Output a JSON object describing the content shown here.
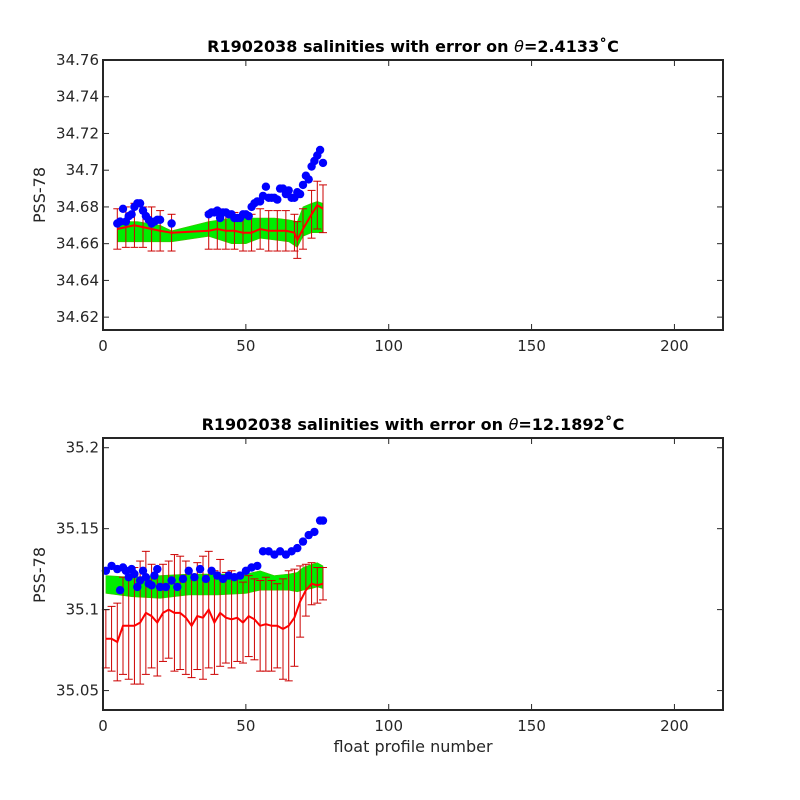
{
  "colors": {
    "observed": "#0000ff",
    "mapped": "#ff0000",
    "errorbar": "#cc0000",
    "band": "#00ee00",
    "band_edge": "#44bb00",
    "axis": "#262626"
  },
  "chart_data": [
    {
      "type": "scatter",
      "title": "R1902038 salinities with error on θ=2.4133˚C",
      "title_parts": {
        "prefix": "R1902038 salinities with error on ",
        "symbol": "θ",
        "suffix": "=2.4133˚C"
      },
      "xlabel": "",
      "ylabel": "PSS-78",
      "xlim": [
        0,
        217
      ],
      "ylim": [
        34.613,
        34.76
      ],
      "xticks": [
        0,
        50,
        100,
        150,
        200
      ],
      "yticks": [
        34.62,
        34.64,
        34.66,
        34.68,
        34.7,
        34.72,
        34.74,
        34.76
      ],
      "ytick_labels": [
        "34.62",
        "34.64",
        "34.66",
        "34.68",
        "34.7",
        "34.72",
        "34.74",
        "34.76"
      ],
      "grid": false,
      "legend": "none",
      "series": [
        {
          "role": "observed",
          "x": [
            5,
            6,
            7,
            8,
            9,
            10,
            11,
            12,
            13,
            14,
            15,
            16,
            17,
            18,
            19,
            20,
            24,
            37,
            38,
            39,
            40,
            41,
            42,
            43,
            44,
            45,
            46,
            47,
            48,
            49,
            50,
            51,
            52,
            53,
            54,
            55,
            56,
            57,
            58,
            59,
            60,
            61,
            62,
            63,
            64,
            65,
            66,
            67,
            68,
            69,
            70,
            71,
            72,
            73,
            74,
            75,
            76,
            77
          ],
          "y": [
            34.671,
            34.672,
            34.679,
            34.672,
            34.675,
            34.676,
            34.68,
            34.682,
            34.682,
            34.678,
            34.675,
            34.673,
            34.671,
            34.672,
            34.673,
            34.673,
            34.671,
            34.676,
            34.677,
            34.677,
            34.678,
            34.674,
            34.677,
            34.677,
            34.676,
            34.676,
            34.674,
            34.674,
            34.674,
            34.676,
            34.676,
            34.675,
            34.68,
            34.682,
            34.683,
            34.683,
            34.686,
            34.691,
            34.685,
            34.685,
            34.685,
            34.684,
            34.69,
            34.69,
            34.687,
            34.689,
            34.685,
            34.685,
            34.688,
            34.687,
            34.692,
            34.697,
            34.695,
            34.702,
            34.705,
            34.708,
            34.711,
            34.704
          ]
        },
        {
          "role": "mapped",
          "x": [
            5,
            8,
            11,
            14,
            17,
            20,
            24,
            37,
            40,
            43,
            46,
            49,
            52,
            55,
            58,
            61,
            64,
            67,
            68,
            70,
            73,
            75,
            77
          ],
          "y": [
            34.668,
            34.669,
            34.67,
            34.669,
            34.668,
            34.667,
            34.666,
            34.667,
            34.668,
            34.667,
            34.667,
            34.666,
            34.666,
            34.668,
            34.667,
            34.667,
            34.667,
            34.666,
            34.662,
            34.668,
            34.676,
            34.681,
            34.679
          ],
          "err": [
            0.011,
            0.011,
            0.012,
            0.011,
            0.012,
            0.011,
            0.01,
            0.01,
            0.011,
            0.01,
            0.01,
            0.01,
            0.01,
            0.011,
            0.011,
            0.011,
            0.011,
            0.01,
            0.01,
            0.011,
            0.013,
            0.013,
            0.013
          ]
        },
        {
          "role": "band",
          "x": [
            5,
            12,
            20,
            24,
            37,
            45,
            50,
            55,
            60,
            65,
            68,
            70,
            73,
            75,
            77
          ],
          "lower": [
            34.661,
            34.661,
            34.661,
            34.661,
            34.664,
            34.66,
            34.66,
            34.663,
            34.662,
            34.661,
            34.658,
            34.664,
            34.666,
            34.666,
            34.666
          ],
          "upper": [
            34.672,
            34.672,
            34.67,
            34.667,
            34.672,
            34.674,
            34.674,
            34.674,
            34.674,
            34.673,
            34.672,
            34.68,
            34.682,
            34.683,
            34.682
          ]
        }
      ]
    },
    {
      "type": "scatter",
      "title": "R1902038 salinities with error on θ=12.1892˚C",
      "title_parts": {
        "prefix": "R1902038 salinities with error on ",
        "symbol": "θ",
        "suffix": "=12.1892˚C"
      },
      "xlabel": "float profile number",
      "ylabel": "PSS-78",
      "xlim": [
        0,
        217
      ],
      "ylim": [
        35.038,
        35.206
      ],
      "xticks": [
        0,
        50,
        100,
        150,
        200
      ],
      "yticks": [
        35.05,
        35.1,
        35.15,
        35.2
      ],
      "ytick_labels": [
        "35.05",
        "35.1",
        "35.15",
        "35.2"
      ],
      "grid": false,
      "legend": "none",
      "series": [
        {
          "role": "observed",
          "x": [
            1,
            3,
            5,
            6,
            7,
            8,
            9,
            10,
            11,
            12,
            13,
            14,
            15,
            16,
            17,
            18,
            19,
            20,
            22,
            24,
            26,
            28,
            30,
            32,
            34,
            36,
            38,
            40,
            42,
            44,
            46,
            48,
            50,
            52,
            54,
            56,
            58,
            60,
            62,
            64,
            66,
            68,
            70,
            72,
            74,
            76,
            77
          ],
          "y": [
            35.124,
            35.127,
            35.125,
            35.112,
            35.126,
            35.124,
            35.12,
            35.125,
            35.122,
            35.114,
            35.118,
            35.124,
            35.12,
            35.116,
            35.115,
            35.121,
            35.125,
            35.114,
            35.114,
            35.118,
            35.114,
            35.119,
            35.124,
            35.12,
            35.125,
            35.119,
            35.124,
            35.121,
            35.119,
            35.121,
            35.12,
            35.121,
            35.124,
            35.126,
            35.127,
            35.136,
            35.136,
            35.134,
            35.136,
            35.134,
            35.136,
            35.138,
            35.142,
            35.146,
            35.148,
            35.155,
            35.155
          ]
        },
        {
          "role": "mapped",
          "x": [
            1,
            3,
            5,
            7,
            9,
            11,
            13,
            15,
            17,
            19,
            21,
            23,
            25,
            27,
            29,
            31,
            33,
            35,
            37,
            39,
            41,
            43,
            45,
            47,
            49,
            51,
            53,
            55,
            57,
            59,
            61,
            63,
            65,
            67,
            69,
            71,
            73,
            75,
            77
          ],
          "y": [
            35.082,
            35.082,
            35.08,
            35.09,
            35.09,
            35.09,
            35.092,
            35.098,
            35.096,
            35.092,
            35.098,
            35.1,
            35.098,
            35.098,
            35.095,
            35.09,
            35.096,
            35.095,
            35.1,
            35.092,
            35.098,
            35.095,
            35.094,
            35.095,
            35.092,
            35.096,
            35.094,
            35.09,
            35.091,
            35.09,
            35.09,
            35.088,
            35.09,
            35.095,
            35.105,
            35.112,
            35.116,
            35.115,
            35.116
          ],
          "err": [
            0.018,
            0.02,
            0.024,
            0.03,
            0.033,
            0.036,
            0.038,
            0.038,
            0.032,
            0.033,
            0.03,
            0.03,
            0.036,
            0.035,
            0.035,
            0.032,
            0.033,
            0.038,
            0.036,
            0.032,
            0.033,
            0.028,
            0.03,
            0.027,
            0.025,
            0.025,
            0.025,
            0.028,
            0.029,
            0.028,
            0.026,
            0.031,
            0.034,
            0.03,
            0.022,
            0.016,
            0.013,
            0.011,
            0.01
          ]
        },
        {
          "role": "band",
          "x": [
            1,
            10,
            20,
            30,
            40,
            50,
            55,
            60,
            65,
            68,
            70,
            73,
            75,
            77
          ],
          "lower": [
            35.11,
            35.108,
            35.107,
            35.109,
            35.109,
            35.11,
            35.112,
            35.112,
            35.112,
            35.111,
            35.112,
            35.113,
            35.114,
            35.113
          ],
          "upper": [
            35.121,
            35.12,
            35.121,
            35.122,
            35.122,
            35.122,
            35.124,
            35.121,
            35.122,
            35.123,
            35.126,
            35.128,
            35.129,
            35.127
          ]
        }
      ]
    }
  ]
}
